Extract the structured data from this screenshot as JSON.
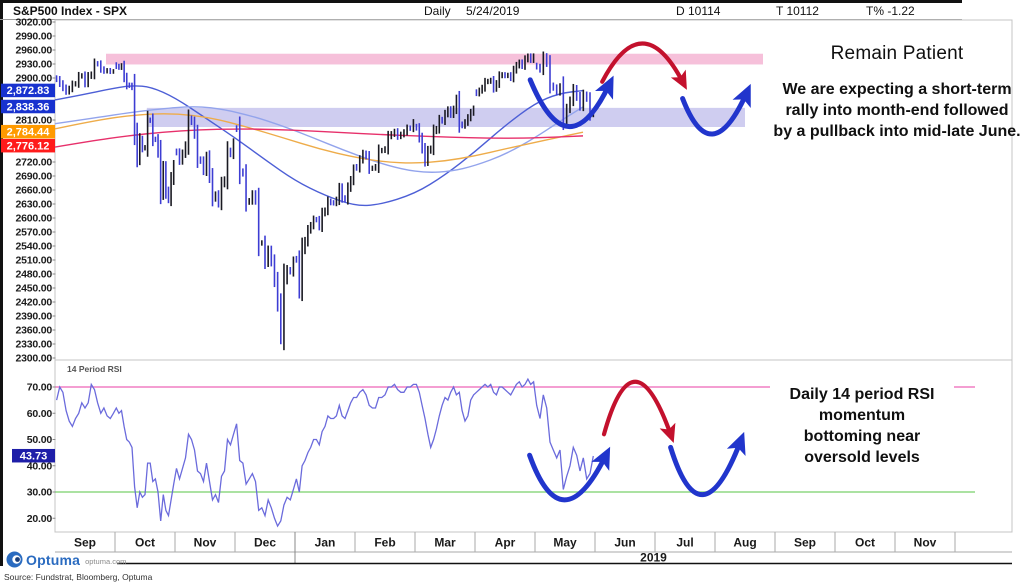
{
  "header": {
    "title": "S&P500 Index - SPX",
    "period": "Daily",
    "date": "5/24/2019",
    "d_field": "D 10114",
    "t_field": "T 10112",
    "tpct_field": "T% -1.22"
  },
  "colors": {
    "band_pink": "#f6c0da",
    "band_lavender": "#cfcdf0",
    "ma1": "#4d5fd6",
    "ma2": "#93a4ec",
    "ma3": "#eeac4a",
    "ma4": "#e7306b",
    "candle_up": "#1a1a22",
    "candle_down": "#3d3dd3",
    "rsi_line": "#6b6bdc",
    "rsi_overbought": "#f07fc3",
    "rsi_oversold": "#8fd984",
    "arrow_red": "#c3112d",
    "arrow_blue": "#2135cc",
    "badge_blue": "#1832cf",
    "badge_orange": "#ff9a00",
    "badge_red": "#ff1b1b",
    "badge_navy": "#1e1ea8"
  },
  "annotations": {
    "remain_patient": "Remain Patient",
    "expecting": [
      "We are expecting a short-term",
      "rally into month-end followed",
      "by a pullback into mid-late June."
    ],
    "rsi_note": [
      "Daily 14 period RSI",
      "momentum",
      "bottoming near",
      "oversold levels"
    ]
  },
  "rsi_panel_label": "14 Period RSI",
  "footer": {
    "logo_text": "Optuma",
    "logo_site": "optuma.com",
    "source": "Source: Fundstrat, Bloomberg, Optuma"
  },
  "chart_data": {
    "type": "candlestick+line",
    "title": "S&P500 Index - SPX",
    "x_axis": {
      "months": [
        "Sep",
        "Oct",
        "Nov",
        "Dec",
        "Jan",
        "Feb",
        "Mar",
        "Apr",
        "May",
        "Jun",
        "Jul",
        "Aug",
        "Sep",
        "Oct",
        "Nov",
        ""
      ],
      "year_label": "2019",
      "year_divider_after_month_index": 3
    },
    "price_panel": {
      "ylim": [
        2300,
        3020
      ],
      "tick_step": 30,
      "hidden_ticks": [
        2870,
        2840,
        2780,
        2750
      ],
      "badges": [
        {
          "label": "2,872.83",
          "price": 2872.83,
          "color_key": "badge_blue"
        },
        {
          "label": "2,838.36",
          "price": 2838.36,
          "color_key": "badge_blue"
        },
        {
          "label": "2,784.44",
          "price": 2784.44,
          "color_key": "badge_orange"
        },
        {
          "label": "2,776.12",
          "price": 2776.12,
          "color_key": "badge_red"
        }
      ],
      "bands": [
        {
          "name": "resistance-zone",
          "price_from": 2929,
          "price_to": 2952,
          "month_from": 0.85,
          "month_to": 11.8,
          "color_key": "band_pink"
        },
        {
          "name": "support-zone",
          "price_from": 2795,
          "price_to": 2836,
          "month_from": 1.53,
          "month_to": 11.5,
          "color_key": "band_lavender"
        }
      ],
      "closes_by_month": [
        [
          2897,
          2888,
          2879,
          2871,
          2877,
          2887,
          2888,
          2904,
          2905,
          2889,
          2904,
          2908,
          2931,
          2930,
          2919,
          2915,
          2916,
          2914,
          2914
        ],
        [
          2925,
          2923,
          2926,
          2902,
          2885,
          2884,
          2880,
          2785,
          2728,
          2767,
          2750,
          2751,
          2810,
          2809,
          2769,
          2768,
          2741,
          2656,
          2705,
          2658,
          2641,
          2683,
          2712
        ],
        [
          2740,
          2723,
          2738,
          2755,
          2813,
          2806,
          2781,
          2726,
          2722,
          2702,
          2730,
          2690,
          2642,
          2650,
          2632,
          2673,
          2682,
          2744,
          2737,
          2760
        ],
        [
          2790,
          2700,
          2695,
          2634,
          2637,
          2651,
          2637,
          2546,
          2547,
          2506,
          2530,
          2507,
          2467,
          2417,
          2351,
          2468,
          2489,
          2485,
          2507
        ],
        [
          2510,
          2448,
          2532,
          2550,
          2574,
          2584,
          2597,
          2596,
          2582,
          2610,
          2616,
          2636,
          2633,
          2632,
          2639,
          2664,
          2643,
          2640,
          2665,
          2681,
          2704
        ],
        [
          2707,
          2725,
          2738,
          2732,
          2706,
          2707,
          2710,
          2744,
          2745,
          2748,
          2775,
          2780,
          2785,
          2775,
          2779,
          2784,
          2793,
          2792,
          2804
        ],
        [
          2793,
          2772,
          2749,
          2722,
          2744,
          2749,
          2786,
          2791,
          2811,
          2808,
          2823,
          2832,
          2822,
          2833,
          2854,
          2801,
          2798,
          2805,
          2815,
          2826,
          2834
        ],
        [
          2867,
          2873,
          2879,
          2892,
          2893,
          2895,
          2878,
          2888,
          2905,
          2907,
          2905,
          2906,
          2900,
          2917,
          2927,
          2933,
          2926,
          2940,
          2946,
          2939,
          2946
        ],
        [
          2924,
          2918,
          2945,
          2932,
          2884,
          2879,
          2870,
          2881,
          2811,
          2834,
          2851,
          2876,
          2860,
          2840,
          2864,
          2856,
          2822,
          2826
        ]
      ],
      "moving_averages": [
        {
          "name": "ma1",
          "color_key": "ma1",
          "points": [
            [
              0,
              2853
            ],
            [
              0.5,
              2865
            ],
            [
              1.0,
              2879
            ],
            [
              1.3,
              2884
            ],
            [
              1.6,
              2881
            ],
            [
              2.0,
              2858
            ],
            [
              2.5,
              2815
            ],
            [
              3.0,
              2772
            ],
            [
              3.5,
              2725
            ],
            [
              4.0,
              2680
            ],
            [
              4.5,
              2648
            ],
            [
              5.0,
              2626
            ],
            [
              5.4,
              2628
            ],
            [
              6.0,
              2652
            ],
            [
              6.5,
              2692
            ],
            [
              7.0,
              2742
            ],
            [
              7.5,
              2798
            ],
            [
              8.0,
              2846
            ],
            [
              8.4,
              2867
            ],
            [
              8.8,
              2873
            ]
          ]
        },
        {
          "name": "ma2",
          "color_key": "ma2",
          "points": [
            [
              0,
              2802
            ],
            [
              0.7,
              2815
            ],
            [
              1.3,
              2827
            ],
            [
              2.0,
              2837
            ],
            [
              2.4,
              2839
            ],
            [
              2.8,
              2833
            ],
            [
              3.3,
              2818
            ],
            [
              3.8,
              2797
            ],
            [
              4.3,
              2772
            ],
            [
              4.8,
              2746
            ],
            [
              5.3,
              2722
            ],
            [
              5.8,
              2704
            ],
            [
              6.2,
              2697
            ],
            [
              6.6,
              2700
            ],
            [
              7.0,
              2712
            ],
            [
              7.5,
              2736
            ],
            [
              8.0,
              2772
            ],
            [
              8.4,
              2806
            ],
            [
              8.8,
              2838
            ]
          ]
        },
        {
          "name": "ma3",
          "color_key": "ma3",
          "points": [
            [
              0,
              2791
            ],
            [
              0.7,
              2810
            ],
            [
              1.4,
              2822
            ],
            [
              2.0,
              2824
            ],
            [
              2.6,
              2815
            ],
            [
              3.2,
              2795
            ],
            [
              3.8,
              2772
            ],
            [
              4.4,
              2748
            ],
            [
              5.0,
              2730
            ],
            [
              5.5,
              2720
            ],
            [
              6.0,
              2717
            ],
            [
              6.5,
              2722
            ],
            [
              7.0,
              2733
            ],
            [
              7.5,
              2748
            ],
            [
              8.0,
              2762
            ],
            [
              8.4,
              2773
            ],
            [
              8.8,
              2784
            ]
          ]
        },
        {
          "name": "ma4",
          "color_key": "ma4",
          "points": [
            [
              0,
              2752
            ],
            [
              0.6,
              2765
            ],
            [
              1.2,
              2776
            ],
            [
              1.8,
              2784
            ],
            [
              2.4,
              2789
            ],
            [
              3.0,
              2791
            ],
            [
              3.6,
              2790
            ],
            [
              4.2,
              2787
            ],
            [
              4.8,
              2783
            ],
            [
              5.4,
              2779
            ],
            [
              6.0,
              2776
            ],
            [
              6.6,
              2773
            ],
            [
              7.2,
              2771
            ],
            [
              7.8,
              2771
            ],
            [
              8.3,
              2773
            ],
            [
              8.8,
              2776
            ]
          ]
        }
      ]
    },
    "rsi_panel": {
      "name": "14 Period RSI",
      "ylim": [
        15,
        80
      ],
      "tick_labels": [
        70,
        60,
        50,
        40,
        30,
        20
      ],
      "overbought": 70,
      "oversold": 30,
      "last_value": 43.73,
      "badge": {
        "label": "43.73",
        "value": 43.73,
        "color_key": "badge_navy"
      },
      "values_by_month": [
        [
          65,
          70,
          68,
          61,
          57,
          55,
          58,
          60,
          64,
          62,
          64,
          71,
          69,
          64,
          60,
          62,
          59,
          58,
          60
        ],
        [
          62,
          60,
          61,
          55,
          50,
          49,
          47,
          32,
          24,
          30,
          28,
          29,
          41,
          41,
          34,
          35,
          30,
          19,
          29,
          23,
          21,
          27,
          33
        ],
        [
          39,
          35,
          39,
          43,
          52,
          50,
          46,
          38,
          37,
          34,
          41,
          34,
          27,
          29,
          26,
          36,
          38,
          50,
          48,
          52
        ],
        [
          56,
          42,
          41,
          33,
          35,
          37,
          34,
          23,
          24,
          21,
          27,
          24,
          20,
          17,
          19,
          25,
          28,
          27,
          31
        ],
        [
          35,
          30,
          40,
          42,
          45,
          47,
          50,
          50,
          48,
          53,
          55,
          59,
          58,
          58,
          59,
          63,
          59,
          58,
          61,
          64,
          66
        ],
        [
          66,
          68,
          69,
          67,
          63,
          62,
          62,
          66,
          66,
          67,
          70,
          70,
          71,
          69,
          68,
          68,
          70,
          70,
          71
        ],
        [
          71,
          68,
          63,
          58,
          52,
          47,
          50,
          54,
          59,
          63,
          66,
          65,
          68,
          70,
          67,
          68,
          61,
          57,
          59,
          65,
          67
        ],
        [
          68,
          69,
          70,
          71,
          70,
          71,
          68,
          67,
          70,
          70,
          69,
          68,
          67,
          69,
          71,
          72,
          70,
          71,
          73,
          71,
          72
        ],
        [
          63,
          58,
          67,
          62,
          49,
          46,
          43,
          46,
          31,
          36,
          40,
          47,
          44,
          38,
          43,
          35,
          37,
          43.73
        ]
      ]
    },
    "arrow_annotations": [
      {
        "name": "rally-arrow-price",
        "shape": "u",
        "color_key": "arrow_blue",
        "panel": "price",
        "from": [
          7.92,
          2896
        ],
        "mid": [
          8.56,
          2796
        ],
        "to": [
          9.23,
          2884
        ]
      },
      {
        "name": "pullback-arrow-price",
        "shape": "arch",
        "color_key": "arrow_red",
        "panel": "price",
        "from": [
          9.12,
          2892
        ],
        "mid": [
          9.79,
          2974
        ],
        "to": [
          10.46,
          2892
        ]
      },
      {
        "name": "rebound-arrow-price",
        "shape": "u",
        "color_key": "arrow_blue",
        "panel": "price",
        "from": [
          10.46,
          2856
        ],
        "mid": [
          10.96,
          2780
        ],
        "to": [
          11.52,
          2866
        ]
      },
      {
        "name": "rally-arrow-rsi",
        "shape": "u",
        "color_key": "arrow_blue",
        "panel": "rsi",
        "from": [
          7.91,
          44
        ],
        "mid": [
          8.49,
          27
        ],
        "to": [
          9.17,
          43.5
        ]
      },
      {
        "name": "pullback-arrow-rsi",
        "shape": "arch",
        "color_key": "arrow_red",
        "panel": "rsi",
        "from": [
          9.15,
          52
        ],
        "mid": [
          9.67,
          72
        ],
        "to": [
          10.26,
          52
        ]
      },
      {
        "name": "rebound-arrow-rsi",
        "shape": "u",
        "color_key": "arrow_blue",
        "panel": "rsi",
        "from": [
          10.26,
          47
        ],
        "mid": [
          10.8,
          29
        ],
        "to": [
          11.42,
          49
        ]
      }
    ]
  }
}
